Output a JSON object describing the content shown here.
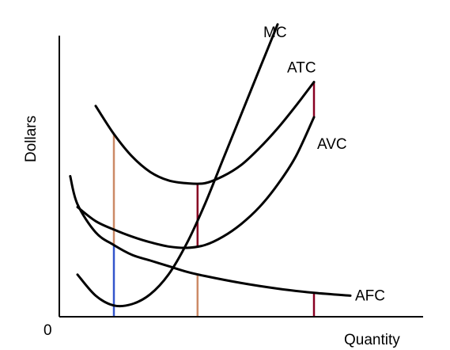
{
  "chart_data": {
    "type": "line",
    "title": "",
    "xlabel": "Quantity",
    "ylabel": "Dollars",
    "origin_label": "0",
    "xlim": [
      0,
      10
    ],
    "ylim": [
      0,
      10
    ],
    "grid": false,
    "legend": "none",
    "series": [
      {
        "name": "MC",
        "color": "#000000",
        "x": [
          0.5,
          1.0,
          1.5,
          2.0,
          2.5,
          3.0,
          3.5,
          4.0,
          4.5,
          5.0,
          5.5,
          6.0
        ],
        "y": [
          1.5,
          0.75,
          0.4,
          0.45,
          0.8,
          1.5,
          2.6,
          4.0,
          5.6,
          7.2,
          8.8,
          10.4
        ]
      },
      {
        "name": "ATC",
        "color": "#000000",
        "x": [
          1.0,
          1.5,
          2.0,
          2.5,
          3.0,
          3.5,
          4.0,
          4.5,
          5.0,
          5.5,
          6.0,
          6.5,
          7.0
        ],
        "y": [
          7.5,
          6.5,
          5.7,
          5.15,
          4.85,
          4.75,
          4.75,
          5.0,
          5.4,
          6.0,
          6.7,
          7.5,
          8.35
        ]
      },
      {
        "name": "AVC",
        "color": "#000000",
        "x": [
          0.5,
          1.0,
          1.5,
          2.0,
          2.5,
          3.0,
          3.5,
          4.0,
          4.5,
          5.0,
          5.5,
          6.0,
          6.5,
          7.0
        ],
        "y": [
          3.9,
          3.4,
          3.1,
          2.85,
          2.65,
          2.5,
          2.45,
          2.55,
          2.85,
          3.3,
          3.9,
          4.7,
          5.7,
          7.1
        ]
      },
      {
        "name": "AFC",
        "color": "#000000",
        "x": [
          0.3,
          0.5,
          1.0,
          1.5,
          2.0,
          2.5,
          3.0,
          3.5,
          4.0,
          5.0,
          6.0,
          7.0,
          8.0
        ],
        "y": [
          5.0,
          4.0,
          3.0,
          2.55,
          2.2,
          2.0,
          1.8,
          1.6,
          1.45,
          1.2,
          1.0,
          0.85,
          0.75
        ]
      }
    ],
    "annotations": [
      {
        "x": 1.5,
        "y0": 0,
        "y1": 2.55,
        "color": "#3355cc"
      },
      {
        "x": 1.5,
        "y0": 2.55,
        "y1": 6.5,
        "color": "#cc8a66"
      },
      {
        "x": 3.8,
        "y0": 0,
        "y1": 1.5,
        "color": "#cc8a66"
      },
      {
        "x": 3.8,
        "y0": 2.5,
        "y1": 4.75,
        "color": "#880022"
      },
      {
        "x": 7.0,
        "y0": 0,
        "y1": 0.85,
        "color": "#880022"
      },
      {
        "x": 7.0,
        "y0": 7.1,
        "y1": 8.35,
        "color": "#880022"
      }
    ]
  }
}
